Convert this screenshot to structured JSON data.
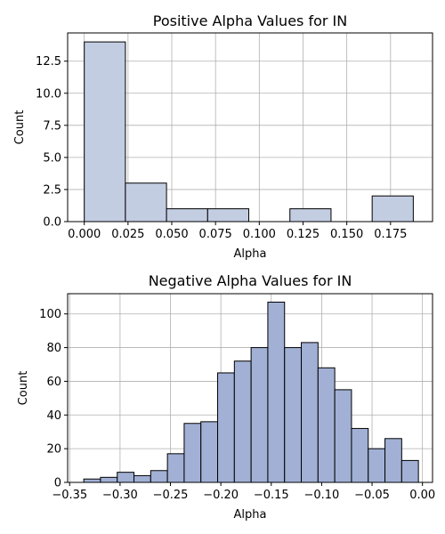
{
  "chart_data": [
    {
      "type": "bar",
      "title": "Positive Alpha Values for IN",
      "xlabel": "Alpha",
      "ylabel": "Count",
      "xlim": [
        -0.0095,
        0.199
      ],
      "ylim": [
        0,
        14.7
      ],
      "grid": true,
      "xticks": [
        0.0,
        0.025,
        0.05,
        0.075,
        0.1,
        0.125,
        0.15,
        0.175
      ],
      "xtick_labels": [
        "0.000",
        "0.025",
        "0.050",
        "0.075",
        "0.100",
        "0.125",
        "0.150",
        "0.175"
      ],
      "yticks": [
        0,
        2.5,
        5.0,
        7.5,
        10.0,
        12.5
      ],
      "ytick_labels": [
        "0.0",
        "2.5",
        "5.0",
        "7.5",
        "10.0",
        "12.5"
      ],
      "bin_edges": [
        0.0,
        0.0235,
        0.047,
        0.0705,
        0.094,
        0.1175,
        0.141,
        0.1645,
        0.188
      ],
      "values": [
        14,
        3,
        1,
        1,
        0,
        1,
        0,
        2
      ],
      "bar_color": "#c3cde2"
    },
    {
      "type": "bar",
      "title": "Negative Alpha Values for IN",
      "xlabel": "Alpha",
      "ylabel": "Count",
      "xlim": [
        -0.352,
        0.01
      ],
      "ylim": [
        0,
        112
      ],
      "grid": true,
      "xticks": [
        -0.35,
        -0.3,
        -0.25,
        -0.2,
        -0.15,
        -0.1,
        -0.05,
        0.0
      ],
      "xtick_labels": [
        "−0.35",
        "−0.30",
        "−0.25",
        "−0.20",
        "−0.15",
        "−0.10",
        "−0.05",
        "0.00"
      ],
      "yticks": [
        0,
        20,
        40,
        60,
        80,
        100
      ],
      "ytick_labels": [
        "0",
        "20",
        "40",
        "60",
        "80",
        "100"
      ],
      "bin_edges": [
        -0.336,
        -0.3194,
        -0.3028,
        -0.2862,
        -0.2696,
        -0.253,
        -0.2364,
        -0.2198,
        -0.2032,
        -0.1866,
        -0.17,
        -0.1534,
        -0.1368,
        -0.1202,
        -0.1036,
        -0.087,
        -0.0704,
        -0.0538,
        -0.0372,
        -0.0206,
        -0.004
      ],
      "values": [
        2,
        3,
        6,
        4,
        7,
        17,
        35,
        36,
        65,
        72,
        80,
        107,
        80,
        83,
        68,
        55,
        32,
        20,
        26,
        13
      ],
      "bar_color": "#a1b0d4"
    }
  ]
}
